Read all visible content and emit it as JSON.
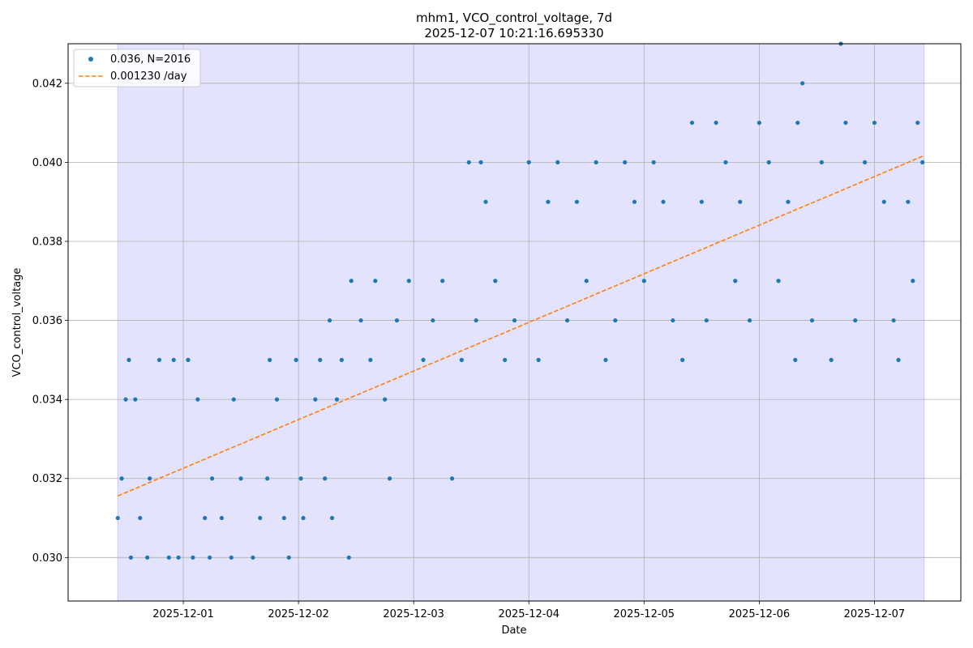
{
  "chart_data": {
    "type": "scatter",
    "title": "mhm1, VCO_control_voltage, 7d",
    "subtitle": "2025-12-07 10:21:16.695330",
    "xlabel": "Date",
    "ylabel": "VCO_control_voltage",
    "x_type": "date",
    "xlim": [
      "2025-11-30T00:00",
      "2025-12-07T18:00"
    ],
    "ylim": [
      0.0289,
      0.043
    ],
    "x_ticks": [
      "2025-12-01",
      "2025-12-02",
      "2025-12-03",
      "2025-12-04",
      "2025-12-05",
      "2025-12-06",
      "2025-12-07"
    ],
    "y_ticks": [
      "0.030",
      "0.032",
      "0.034",
      "0.036",
      "0.038",
      "0.040",
      "0.042"
    ],
    "grid": true,
    "legend_position": "top-left",
    "shaded_span": {
      "start": "2025-11-30T10:21",
      "end": "2025-12-07T10:21",
      "color": "#e3e3fd"
    },
    "series": [
      {
        "name": "0.036, N=2016",
        "kind": "scatter",
        "color": "#1f77b4",
        "points": [
          [
            "2025-11-30T10:21",
            0.031
          ],
          [
            "2025-11-30T11:10",
            0.032
          ],
          [
            "2025-11-30T12:00",
            0.034
          ],
          [
            "2025-11-30T12:40",
            0.035
          ],
          [
            "2025-11-30T13:05",
            0.03
          ],
          [
            "2025-11-30T14:00",
            0.034
          ],
          [
            "2025-11-30T15:00",
            0.031
          ],
          [
            "2025-11-30T16:30",
            0.03
          ],
          [
            "2025-11-30T17:00",
            0.032
          ],
          [
            "2025-11-30T19:00",
            0.035
          ],
          [
            "2025-11-30T21:00",
            0.03
          ],
          [
            "2025-11-30T22:00",
            0.035
          ],
          [
            "2025-11-30T23:00",
            0.03
          ],
          [
            "2025-12-01T01:00",
            0.035
          ],
          [
            "2025-12-01T02:00",
            0.03
          ],
          [
            "2025-12-01T03:00",
            0.034
          ],
          [
            "2025-12-01T04:30",
            0.031
          ],
          [
            "2025-12-01T05:30",
            0.03
          ],
          [
            "2025-12-01T06:00",
            0.032
          ],
          [
            "2025-12-01T08:00",
            0.031
          ],
          [
            "2025-12-01T10:00",
            0.03
          ],
          [
            "2025-12-01T10:30",
            0.034
          ],
          [
            "2025-12-01T12:00",
            0.032
          ],
          [
            "2025-12-01T14:30",
            0.03
          ],
          [
            "2025-12-01T16:00",
            0.031
          ],
          [
            "2025-12-01T17:30",
            0.032
          ],
          [
            "2025-12-01T18:00",
            0.035
          ],
          [
            "2025-12-01T19:30",
            0.034
          ],
          [
            "2025-12-01T21:00",
            0.031
          ],
          [
            "2025-12-01T22:00",
            0.03
          ],
          [
            "2025-12-01T23:30",
            0.035
          ],
          [
            "2025-12-02T00:30",
            0.032
          ],
          [
            "2025-12-02T01:00",
            0.031
          ],
          [
            "2025-12-02T03:30",
            0.034
          ],
          [
            "2025-12-02T04:30",
            0.035
          ],
          [
            "2025-12-02T05:30",
            0.032
          ],
          [
            "2025-12-02T06:30",
            0.036
          ],
          [
            "2025-12-02T07:00",
            0.031
          ],
          [
            "2025-12-02T08:00",
            0.034
          ],
          [
            "2025-12-02T09:00",
            0.035
          ],
          [
            "2025-12-02T10:30",
            0.03
          ],
          [
            "2025-12-02T11:00",
            0.037
          ],
          [
            "2025-12-02T13:00",
            0.036
          ],
          [
            "2025-12-02T15:00",
            0.035
          ],
          [
            "2025-12-02T16:00",
            0.037
          ],
          [
            "2025-12-02T18:00",
            0.034
          ],
          [
            "2025-12-02T19:00",
            0.032
          ],
          [
            "2025-12-02T20:30",
            0.036
          ],
          [
            "2025-12-02T23:00",
            0.037
          ],
          [
            "2025-12-03T02:00",
            0.035
          ],
          [
            "2025-12-03T04:00",
            0.036
          ],
          [
            "2025-12-03T06:00",
            0.037
          ],
          [
            "2025-12-03T08:00",
            0.032
          ],
          [
            "2025-12-03T10:00",
            0.035
          ],
          [
            "2025-12-03T11:30",
            0.04
          ],
          [
            "2025-12-03T13:00",
            0.036
          ],
          [
            "2025-12-03T14:00",
            0.04
          ],
          [
            "2025-12-03T15:00",
            0.039
          ],
          [
            "2025-12-03T17:00",
            0.037
          ],
          [
            "2025-12-03T19:00",
            0.035
          ],
          [
            "2025-12-03T21:00",
            0.036
          ],
          [
            "2025-12-04T00:00",
            0.04
          ],
          [
            "2025-12-04T02:00",
            0.035
          ],
          [
            "2025-12-04T04:00",
            0.039
          ],
          [
            "2025-12-04T06:00",
            0.04
          ],
          [
            "2025-12-04T08:00",
            0.036
          ],
          [
            "2025-12-04T10:00",
            0.039
          ],
          [
            "2025-12-04T12:00",
            0.037
          ],
          [
            "2025-12-04T14:00",
            0.04
          ],
          [
            "2025-12-04T16:00",
            0.035
          ],
          [
            "2025-12-04T18:00",
            0.036
          ],
          [
            "2025-12-04T20:00",
            0.04
          ],
          [
            "2025-12-04T22:00",
            0.039
          ],
          [
            "2025-12-05T00:00",
            0.037
          ],
          [
            "2025-12-05T02:00",
            0.04
          ],
          [
            "2025-12-05T04:00",
            0.039
          ],
          [
            "2025-12-05T06:00",
            0.036
          ],
          [
            "2025-12-05T08:00",
            0.035
          ],
          [
            "2025-12-05T10:00",
            0.041
          ],
          [
            "2025-12-05T12:00",
            0.039
          ],
          [
            "2025-12-05T13:00",
            0.036
          ],
          [
            "2025-12-05T15:00",
            0.041
          ],
          [
            "2025-12-05T17:00",
            0.04
          ],
          [
            "2025-12-05T19:00",
            0.037
          ],
          [
            "2025-12-05T20:00",
            0.039
          ],
          [
            "2025-12-05T22:00",
            0.036
          ],
          [
            "2025-12-06T00:00",
            0.041
          ],
          [
            "2025-12-06T02:00",
            0.04
          ],
          [
            "2025-12-06T04:00",
            0.037
          ],
          [
            "2025-12-06T06:00",
            0.039
          ],
          [
            "2025-12-06T07:30",
            0.035
          ],
          [
            "2025-12-06T08:00",
            0.041
          ],
          [
            "2025-12-06T09:00",
            0.042
          ],
          [
            "2025-12-06T11:00",
            0.036
          ],
          [
            "2025-12-06T13:00",
            0.04
          ],
          [
            "2025-12-06T15:00",
            0.035
          ],
          [
            "2025-12-06T17:00",
            0.043
          ],
          [
            "2025-12-06T18:00",
            0.041
          ],
          [
            "2025-12-06T20:00",
            0.036
          ],
          [
            "2025-12-06T22:00",
            0.04
          ],
          [
            "2025-12-07T00:00",
            0.041
          ],
          [
            "2025-12-07T02:00",
            0.039
          ],
          [
            "2025-12-07T04:00",
            0.036
          ],
          [
            "2025-12-07T05:00",
            0.035
          ],
          [
            "2025-12-07T07:00",
            0.039
          ],
          [
            "2025-12-07T08:00",
            0.037
          ],
          [
            "2025-12-07T09:00",
            0.041
          ],
          [
            "2025-12-07T10:00",
            0.04
          ]
        ]
      },
      {
        "name": "0.001230 /day",
        "kind": "line",
        "style": "dashed",
        "color": "#ff7f0e",
        "points": [
          [
            "2025-11-30T10:21",
            0.03156
          ],
          [
            "2025-12-07T10:21",
            0.04017
          ]
        ]
      }
    ]
  }
}
